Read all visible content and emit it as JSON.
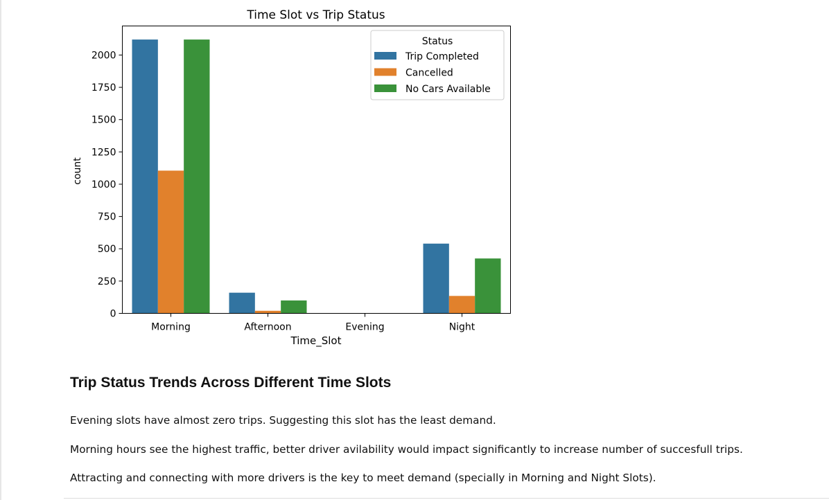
{
  "chart_data": {
    "type": "bar",
    "title": "Time Slot vs Trip Status",
    "xlabel": "Time_Slot",
    "ylabel": "count",
    "categories": [
      "Morning",
      "Afternoon",
      "Evening",
      "Night"
    ],
    "series": [
      {
        "name": "Trip Completed",
        "color": "#3274a1",
        "values": [
          2120,
          160,
          0,
          540
        ]
      },
      {
        "name": "Cancelled",
        "color": "#e1812c",
        "values": [
          1105,
          20,
          0,
          135
        ]
      },
      {
        "name": "No Cars Available",
        "color": "#3a923a",
        "values": [
          2120,
          100,
          0,
          425
        ]
      }
    ],
    "ylim": [
      0,
      2225
    ],
    "yticks": [
      0,
      250,
      500,
      750,
      1000,
      1250,
      1500,
      1750,
      2000
    ],
    "legend": {
      "title": "Status",
      "placement": "top-right"
    },
    "grid": false
  },
  "markdown": {
    "heading": "Trip Status Trends Across Different Time Slots",
    "paragraphs": [
      "Evening slots have almost zero trips. Suggesting this slot has the least demand.",
      "Morning hours see the highest traffic, better driver avilability would impact significantly to increase number of succesfull trips.",
      "Attracting and connecting with more drivers is the key to meet demand (specially in Morning and Night Slots)."
    ]
  }
}
